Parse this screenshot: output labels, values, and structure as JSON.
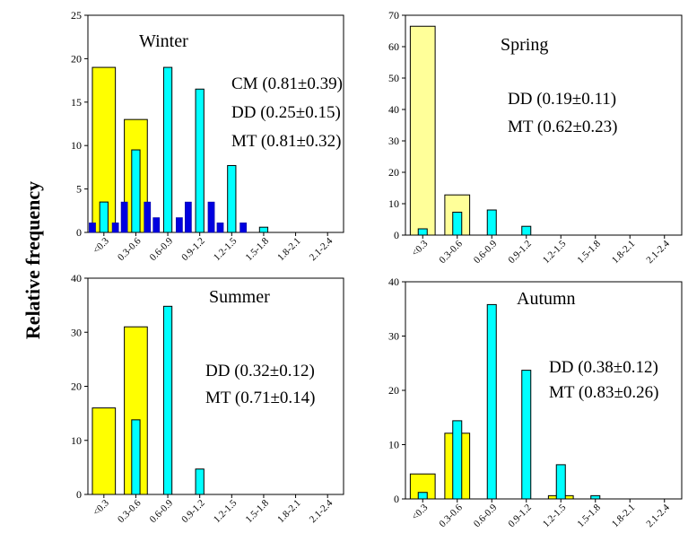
{
  "figure": {
    "ylabel": "Relative frequency"
  },
  "colors": {
    "CM": "#0000e0",
    "DD": "#ffff00",
    "MT": "#00ffff",
    "Spring_DD": "#ffff99",
    "edge": "#000000"
  },
  "chart_data": [
    {
      "type": "bar",
      "title": "Winter",
      "categories": [
        "<0.3",
        "0.3-0.6",
        "0.6-0.9",
        "0.9-1.2",
        "1.2-1.5",
        "1.5-1.8",
        "1.8-2.1",
        "2.1-2.4"
      ],
      "ylim": [
        0,
        25
      ],
      "yticks": [
        0,
        5,
        10,
        15,
        20,
        25
      ],
      "series": [
        {
          "key": "CM",
          "values": [
            1.1,
            3.5,
            1.7,
            3.5,
            1.1,
            0,
            0,
            0
          ]
        },
        {
          "key": "DD",
          "values": [
            19.0,
            13.0,
            0,
            0,
            0,
            0,
            0,
            0
          ]
        },
        {
          "key": "MT",
          "values": [
            3.5,
            9.5,
            19.0,
            16.5,
            7.7,
            0.6,
            0,
            0
          ]
        }
      ],
      "stats": [
        "CM (0.81±0.39)",
        "DD (0.25±0.15)",
        "MT (0.81±0.32)"
      ]
    },
    {
      "type": "bar",
      "title": "Spring",
      "categories": [
        "<0.3",
        "0.3-0.6",
        "0.6-0.9",
        "0.9-1.2",
        "1.2-1.5",
        "1.5-1.8",
        "1.8-2.1",
        "2.1-2.4"
      ],
      "ylim": [
        0,
        70
      ],
      "yticks": [
        0,
        10,
        20,
        30,
        40,
        50,
        60,
        70
      ],
      "series": [
        {
          "key": "DD",
          "values": [
            66.5,
            12.8,
            0,
            0,
            0,
            0,
            0,
            0
          ]
        },
        {
          "key": "MT",
          "values": [
            2.0,
            7.3,
            8.0,
            2.8,
            0,
            0,
            0,
            0
          ]
        }
      ],
      "stats": [
        "DD (0.19±0.11)",
        "MT (0.62±0.23)"
      ]
    },
    {
      "type": "bar",
      "title": "Summer",
      "categories": [
        "<0.3",
        "0.3-0.6",
        "0.6-0.9",
        "0.9-1.2",
        "1.2-1.5",
        "1.5-1.8",
        "1.8-2.1",
        "2.1-2.4"
      ],
      "ylim": [
        0,
        40
      ],
      "yticks": [
        0,
        10,
        20,
        30,
        40
      ],
      "series": [
        {
          "key": "DD",
          "values": [
            16.0,
            31.0,
            0,
            0,
            0,
            0,
            0,
            0
          ]
        },
        {
          "key": "MT",
          "values": [
            0,
            13.8,
            34.8,
            4.7,
            0,
            0,
            0,
            0
          ]
        }
      ],
      "stats": [
        "DD (0.32±0.12)",
        "MT (0.71±0.14)"
      ]
    },
    {
      "type": "bar",
      "title": "Autumn",
      "categories": [
        "<0.3",
        "0.3-0.6",
        "0.6-0.9",
        "0.9-1.2",
        "1.2-1.5",
        "1.5-1.8",
        "1.8-2.1",
        "2.1-2.4"
      ],
      "ylim": [
        0,
        40
      ],
      "yticks": [
        0,
        10,
        20,
        30,
        40
      ],
      "series": [
        {
          "key": "DD",
          "values": [
            4.6,
            12.1,
            0,
            0,
            0.6,
            0,
            0,
            0
          ]
        },
        {
          "key": "MT",
          "values": [
            1.2,
            14.4,
            35.8,
            23.7,
            6.3,
            0.6,
            0,
            0
          ]
        }
      ],
      "stats": [
        "DD (0.38±0.12)",
        "MT (0.83±0.26)"
      ]
    }
  ]
}
